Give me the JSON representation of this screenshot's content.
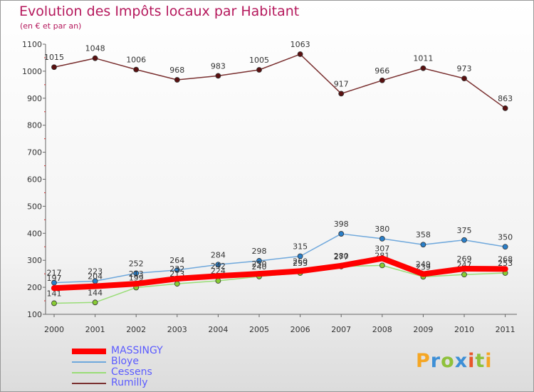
{
  "header": {
    "title": "Evolution des Impôts locaux par Habitant",
    "subtitle": "(en € et par an)"
  },
  "legend": {
    "items": [
      {
        "label": "MASSINGY",
        "color": "#ff0000"
      },
      {
        "label": "Bloye",
        "color": "#6fa8dc"
      },
      {
        "label": "Cessens",
        "color": "#99dd77"
      },
      {
        "label": "Rumilly",
        "color": "#7a3030"
      }
    ]
  },
  "logo": {
    "letters": [
      "P",
      "r",
      "o",
      "x",
      "i",
      "t",
      "i"
    ],
    "colors": [
      "#f5a623",
      "#3d8fd6",
      "#8fc13b",
      "#3d8fd6",
      "#e8562a",
      "#8fc13b",
      "#f5a623"
    ]
  },
  "chart_data": {
    "type": "line",
    "title": "Evolution des Impôts locaux par Habitant",
    "subtitle": "(en € et par an)",
    "xlabel": "",
    "ylabel": "",
    "x": [
      "2000",
      "2001",
      "2002",
      "2003",
      "2004",
      "2005",
      "2006",
      "2007",
      "2008",
      "2009",
      "2010",
      "2011"
    ],
    "ylim": [
      100,
      1100
    ],
    "yticks": [
      100,
      200,
      300,
      400,
      500,
      600,
      700,
      800,
      900,
      1000,
      1100
    ],
    "grid": false,
    "legend_position": "bottom-left",
    "series": [
      {
        "name": "Rumilly",
        "color": "#7a3030",
        "marker": "#5a1010",
        "values": [
          1015,
          1048,
          1006,
          968,
          983,
          1005,
          1063,
          917,
          966,
          1011,
          973,
          863
        ],
        "labels": [
          "1015",
          "1048",
          "1006",
          "968",
          "983",
          "1005",
          "1063",
          "917",
          "966",
          "1011",
          "973",
          "863"
        ]
      },
      {
        "name": "Bloye",
        "color": "#6fa8dc",
        "marker": "#2a7fc9",
        "values": [
          217,
          223,
          252,
          264,
          284,
          298,
          315,
          398,
          380,
          358,
          375,
          350
        ],
        "labels": [
          "217",
          "223",
          "252",
          "264",
          "284",
          "298",
          "315",
          "398",
          "380",
          "358",
          "375",
          "350"
        ]
      },
      {
        "name": "Cessens",
        "color": "#99dd77",
        "marker": "#88cc33",
        "values": [
          141,
          144,
          199,
          213,
          224,
          240,
          253,
          277,
          281,
          239,
          247,
          253
        ],
        "labels": [
          "141",
          "144",
          "199",
          "213",
          "224",
          "240",
          "253",
          "277",
          "281",
          "239",
          "247",
          "253"
        ]
      },
      {
        "name": "MASSINGY",
        "color": "#ff0000",
        "marker": "#ff0000",
        "values": [
          197,
          204,
          213,
          232,
          242,
          250,
          260,
          280,
          307,
          249,
          269,
          268
        ],
        "labels": [
          "197",
          "204",
          "213",
          "232",
          "242",
          "250",
          "260",
          "280",
          "307",
          "249",
          "269",
          "268"
        ]
      }
    ]
  }
}
